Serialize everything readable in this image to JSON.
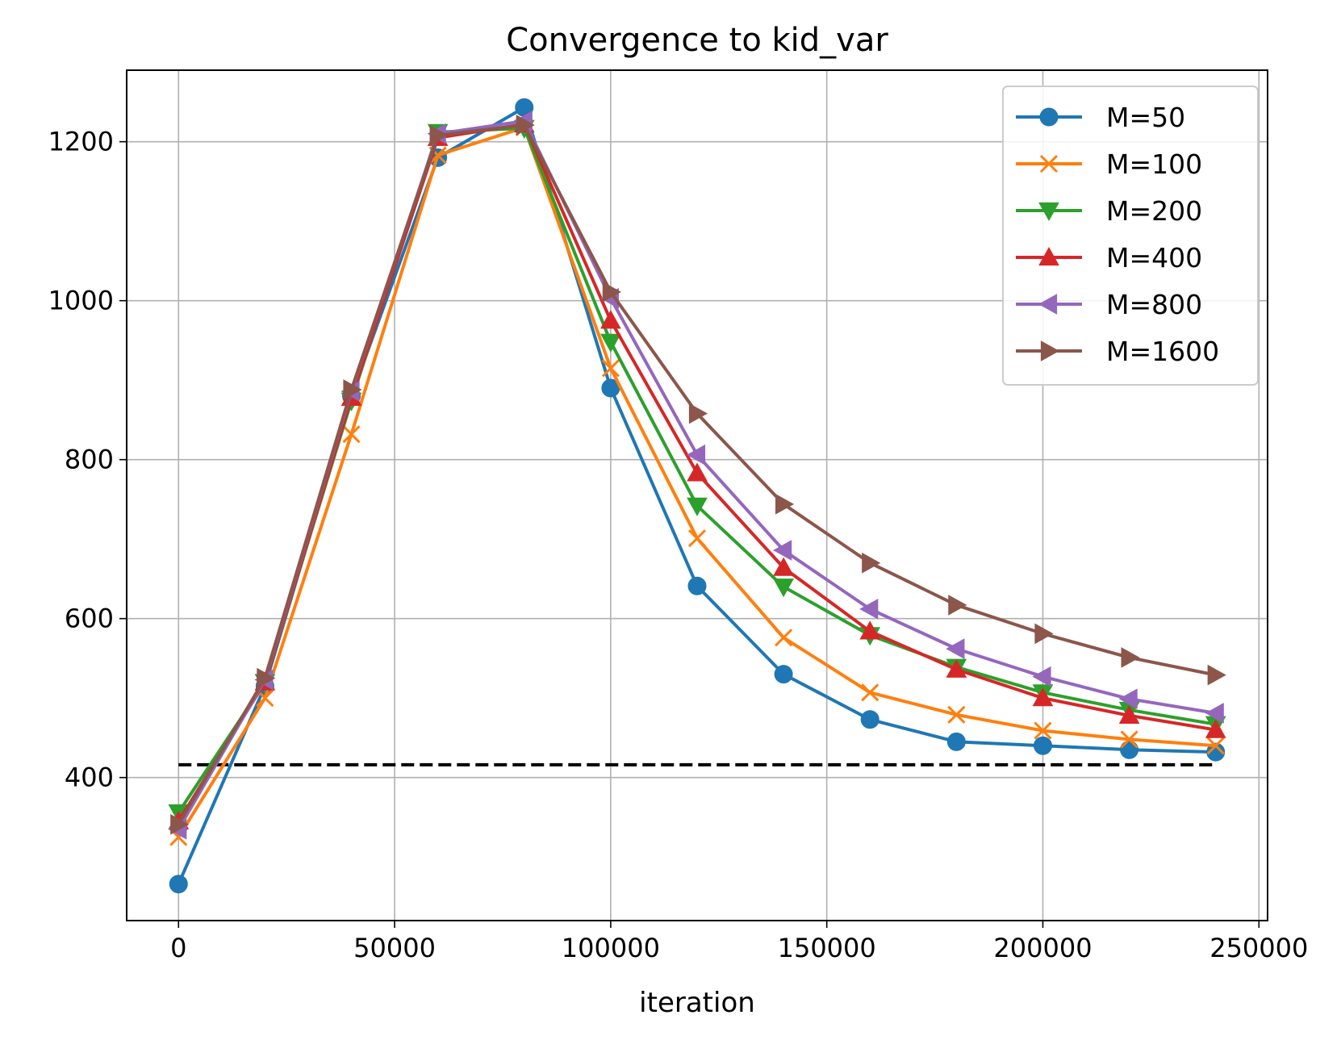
{
  "chart_data": {
    "type": "line",
    "title": "Convergence to kid_var",
    "xlabel": "iteration",
    "ylabel": "",
    "xlim": [
      -12000,
      252000
    ],
    "ylim": [
      220,
      1290
    ],
    "x": [
      0,
      20000,
      40000,
      60000,
      80000,
      100000,
      120000,
      140000,
      160000,
      180000,
      200000,
      220000,
      240000
    ],
    "x_ticks": [
      0,
      50000,
      100000,
      150000,
      200000,
      250000
    ],
    "x_tick_labels": [
      "0",
      "50000",
      "100000",
      "150000",
      "200000",
      "250000"
    ],
    "y_ticks": [
      400,
      600,
      800,
      1000,
      1200
    ],
    "y_tick_labels": [
      "400",
      "600",
      "800",
      "1000",
      "1200"
    ],
    "grid": true,
    "legend_position": "top-right",
    "reference_line": {
      "value": 416,
      "x_start": 0,
      "x_end": 240000,
      "style": "dashed",
      "color": "#000000"
    },
    "series": [
      {
        "name": "M=50",
        "color": "#1f77b4",
        "marker": "circle",
        "values": [
          266,
          515,
          880,
          1180,
          1243,
          890,
          641,
          530,
          473,
          445,
          440,
          435,
          432
        ]
      },
      {
        "name": "M=100",
        "color": "#ff7f0e",
        "marker": "x",
        "values": [
          325,
          500,
          832,
          1183,
          1218,
          915,
          701,
          576,
          507,
          479,
          459,
          448,
          440
        ]
      },
      {
        "name": "M=200",
        "color": "#2ca02c",
        "marker": "triangle-down",
        "values": [
          356,
          520,
          874,
          1212,
          1217,
          948,
          742,
          640,
          579,
          539,
          507,
          485,
          467
        ]
      },
      {
        "name": "M=400",
        "color": "#d62728",
        "marker": "triangle-up",
        "values": [
          345,
          520,
          878,
          1205,
          1222,
          975,
          783,
          664,
          584,
          536,
          500,
          478,
          460
        ]
      },
      {
        "name": "M=800",
        "color": "#9467bd",
        "marker": "triangle-left",
        "values": [
          335,
          523,
          886,
          1210,
          1226,
          1003,
          806,
          686,
          612,
          562,
          527,
          499,
          481
        ]
      },
      {
        "name": "M=1600",
        "color": "#8c564b",
        "marker": "triangle-right",
        "values": [
          341,
          525,
          888,
          1208,
          1221,
          1011,
          858,
          744,
          670,
          617,
          581,
          551,
          529
        ]
      }
    ]
  }
}
